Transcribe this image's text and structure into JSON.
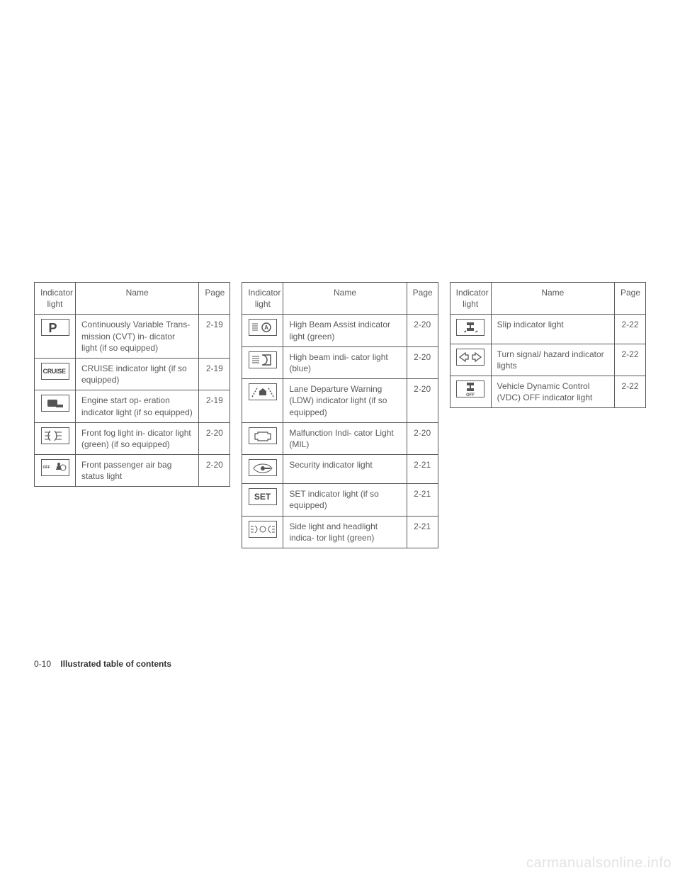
{
  "headers": {
    "indicator": "Indicator light",
    "name": "Name",
    "page": "Page"
  },
  "tables": [
    {
      "rows": [
        {
          "icon": "p-letter",
          "name": "Continuously Variable Trans- mission (CVT) in- dicator light (if so equipped)",
          "page": "2-19"
        },
        {
          "icon": "cruise",
          "name": "CRUISE indicator light (if so equipped)",
          "page": "2-19"
        },
        {
          "icon": "key-fob",
          "name": "Engine start op- eration indicator light (if so equipped)",
          "page": "2-19"
        },
        {
          "icon": "fog-light",
          "name": "Front fog light in- dicator light (green) (if so equipped)",
          "page": "2-20"
        },
        {
          "icon": "airbag-off",
          "name": "Front passenger air bag status light",
          "page": "2-20"
        }
      ]
    },
    {
      "rows": [
        {
          "icon": "high-beam-assist",
          "name": "High Beam Assist indicator light (green)",
          "page": "2-20"
        },
        {
          "icon": "high-beam",
          "name": "High beam indi- cator light (blue)",
          "page": "2-20"
        },
        {
          "icon": "ldw",
          "name": "Lane Departure Warning (LDW) indicator light (if so equipped)",
          "page": "2-20"
        },
        {
          "icon": "mil",
          "name": "Malfunction Indi- cator Light (MIL)",
          "page": "2-20"
        },
        {
          "icon": "security",
          "name": "Security indicator light",
          "page": "2-21"
        },
        {
          "icon": "set",
          "name": "SET indicator light (if so equipped)",
          "page": "2-21"
        },
        {
          "icon": "side-light",
          "name": "Side light and headlight indica- tor light (green)",
          "page": "2-21"
        }
      ]
    },
    {
      "rows": [
        {
          "icon": "slip",
          "name": "Slip indicator light",
          "page": "2-22"
        },
        {
          "icon": "turn-signal",
          "name": "Turn signal/ hazard indicator lights",
          "page": "2-22"
        },
        {
          "icon": "vdc-off",
          "name": "Vehicle Dynamic Control (VDC) OFF indicator light",
          "page": "2-22"
        }
      ]
    }
  ],
  "footer": {
    "page_num": "0-10",
    "section_title": "Illustrated table of contents"
  },
  "watermark": "carmanualsonline.info",
  "styling": {
    "page_bg": "#ffffff",
    "text_color": "#5a5a5a",
    "border_color": "#5a5a5a",
    "font_size_pt": 12,
    "icon_box_w": 40,
    "icon_box_h": 24,
    "watermark_color": "#e3e3e3"
  }
}
